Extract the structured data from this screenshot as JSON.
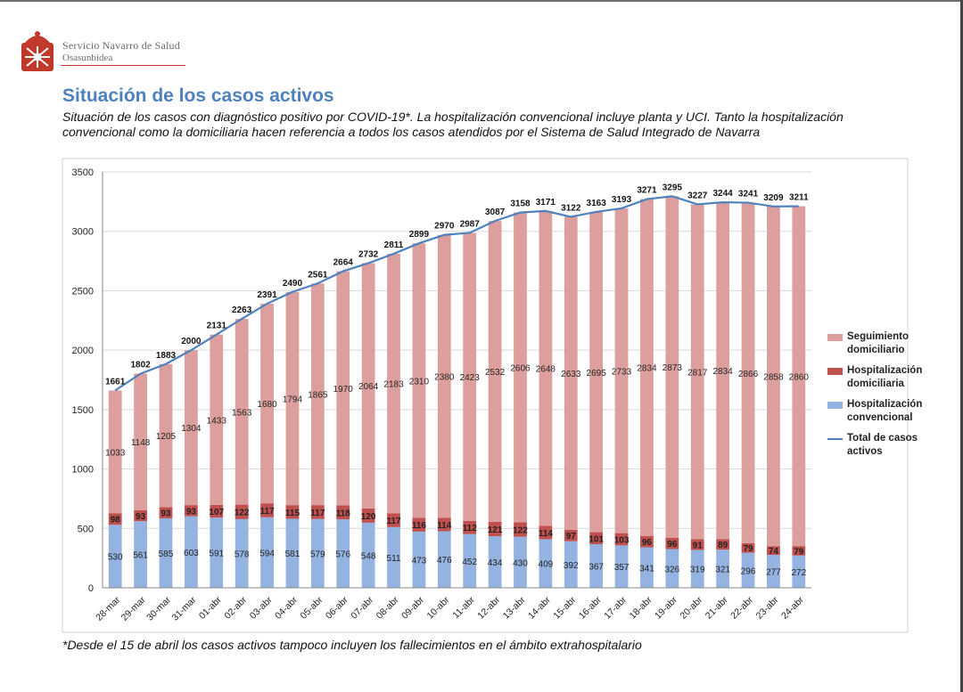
{
  "header": {
    "org_name": "Servicio Navarro de Salud",
    "org_subname": "Osasunbidea"
  },
  "title": "Situación de los casos activos",
  "subtitle": "Situación de los casos con diagnóstico positivo por COVID-19*. La hospitalización convencional incluye planta y UCI. Tanto la hospitalización convencional como la domiciliaria hacen referencia a todos los casos atendidos por el Sistema de Salud Integrado de Navarra",
  "footnote": "*Desde el 15 de abril los casos activos tampoco incluyen los fallecimientos en el ámbito extrahospitalario",
  "colors": {
    "seguimiento": "#dc9f9e",
    "hosp_domiciliaria": "#c0504d",
    "hosp_convencional": "#95b3e0",
    "total": "#4f81bd"
  },
  "chart_data": {
    "type": "bar",
    "stacked": true,
    "categories": [
      "28-mar",
      "29-mar",
      "30-mar",
      "31-mar",
      "01-abr",
      "02-abr",
      "03-abr",
      "04-abr",
      "05-abr",
      "06-abr",
      "07-abr",
      "08-abr",
      "09-abr",
      "10-abr",
      "11-abr",
      "12-abr",
      "13-abr",
      "14-abr",
      "15-abr",
      "16-abr",
      "17-abr",
      "18-abr",
      "19-abr",
      "20-abr",
      "21-abr",
      "22-abr",
      "23-abr",
      "24-abr"
    ],
    "series": [
      {
        "name": "Hospitalización convencional",
        "values": [
          530,
          561,
          585,
          603,
          591,
          578,
          594,
          581,
          579,
          576,
          548,
          511,
          473,
          476,
          452,
          434,
          430,
          409,
          392,
          367,
          357,
          341,
          326,
          319,
          321,
          296,
          277,
          272
        ]
      },
      {
        "name": "Hospitalización domiciliaria",
        "values": [
          98,
          93,
          93,
          93,
          107,
          122,
          117,
          115,
          117,
          118,
          120,
          117,
          116,
          114,
          112,
          121,
          122,
          114,
          97,
          101,
          103,
          96,
          96,
          91,
          89,
          79,
          74,
          79
        ]
      },
      {
        "name": "Seguimiento domiciliario",
        "values": [
          1033,
          1148,
          1205,
          1304,
          1433,
          1563,
          1680,
          1794,
          1865,
          1970,
          2064,
          2183,
          2310,
          2380,
          2423,
          2532,
          2606,
          2648,
          2633,
          2695,
          2733,
          2834,
          2873,
          2817,
          2834,
          2866,
          2858,
          2860
        ]
      }
    ],
    "line": {
      "name": "Total de casos activos",
      "values": [
        1661,
        1802,
        1883,
        2000,
        2131,
        2263,
        2391,
        2490,
        2561,
        2664,
        2732,
        2811,
        2899,
        2970,
        2987,
        3087,
        3158,
        3171,
        3122,
        3163,
        3193,
        3271,
        3295,
        3227,
        3244,
        3241,
        3209,
        3211
      ]
    },
    "ylim": [
      0,
      3500
    ],
    "yticks": [
      "0",
      "500",
      "1000",
      "1500",
      "2000",
      "2500",
      "3000",
      "3500"
    ],
    "legend": {
      "position": "right",
      "items": [
        {
          "key": "seguimiento",
          "label": "Seguimiento domiciliario",
          "kind": "bar"
        },
        {
          "key": "hosp_domiciliaria",
          "label": "Hospitalización domiciliaria",
          "kind": "bar"
        },
        {
          "key": "hosp_convencional",
          "label": "Hospitalización convencional",
          "kind": "bar"
        },
        {
          "key": "total",
          "label": "Total de casos activos",
          "kind": "line"
        }
      ]
    }
  }
}
